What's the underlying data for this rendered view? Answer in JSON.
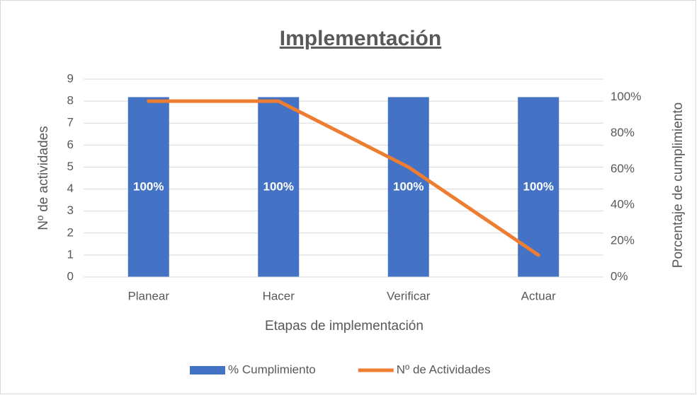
{
  "chart_data": {
    "type": "bar_line",
    "title": "Implementación",
    "xlabel": "Etapas de implementación",
    "ylabel": "Nº de actividades",
    "y2label": "Porcentaje de cumplimiento",
    "categories": [
      "Planear",
      "Hacer",
      "Verificar",
      "Actuar"
    ],
    "series": [
      {
        "name": "% Cumplimiento",
        "type": "bar",
        "color": "#4472c4",
        "axis": "y2",
        "values": [
          100,
          100,
          100,
          100
        ],
        "value_labels": [
          "100%",
          "100%",
          "100%",
          "100%"
        ]
      },
      {
        "name": "Nº de Actividades",
        "type": "line",
        "color": "#ed7d31",
        "axis": "y",
        "values": [
          8,
          8,
          5,
          1
        ]
      }
    ],
    "ylim": [
      0,
      9
    ],
    "yticks": [
      0,
      1,
      2,
      3,
      4,
      5,
      6,
      7,
      8,
      9
    ],
    "y2lim": [
      0,
      110
    ],
    "y2ticks": [
      {
        "value": 0,
        "label": "0%"
      },
      {
        "value": 20,
        "label": "20%"
      },
      {
        "value": 40,
        "label": "40%"
      },
      {
        "value": 60,
        "label": "60%"
      },
      {
        "value": 80,
        "label": "80%"
      },
      {
        "value": 100,
        "label": "100%"
      }
    ],
    "grid": true,
    "legend": "bottom"
  }
}
